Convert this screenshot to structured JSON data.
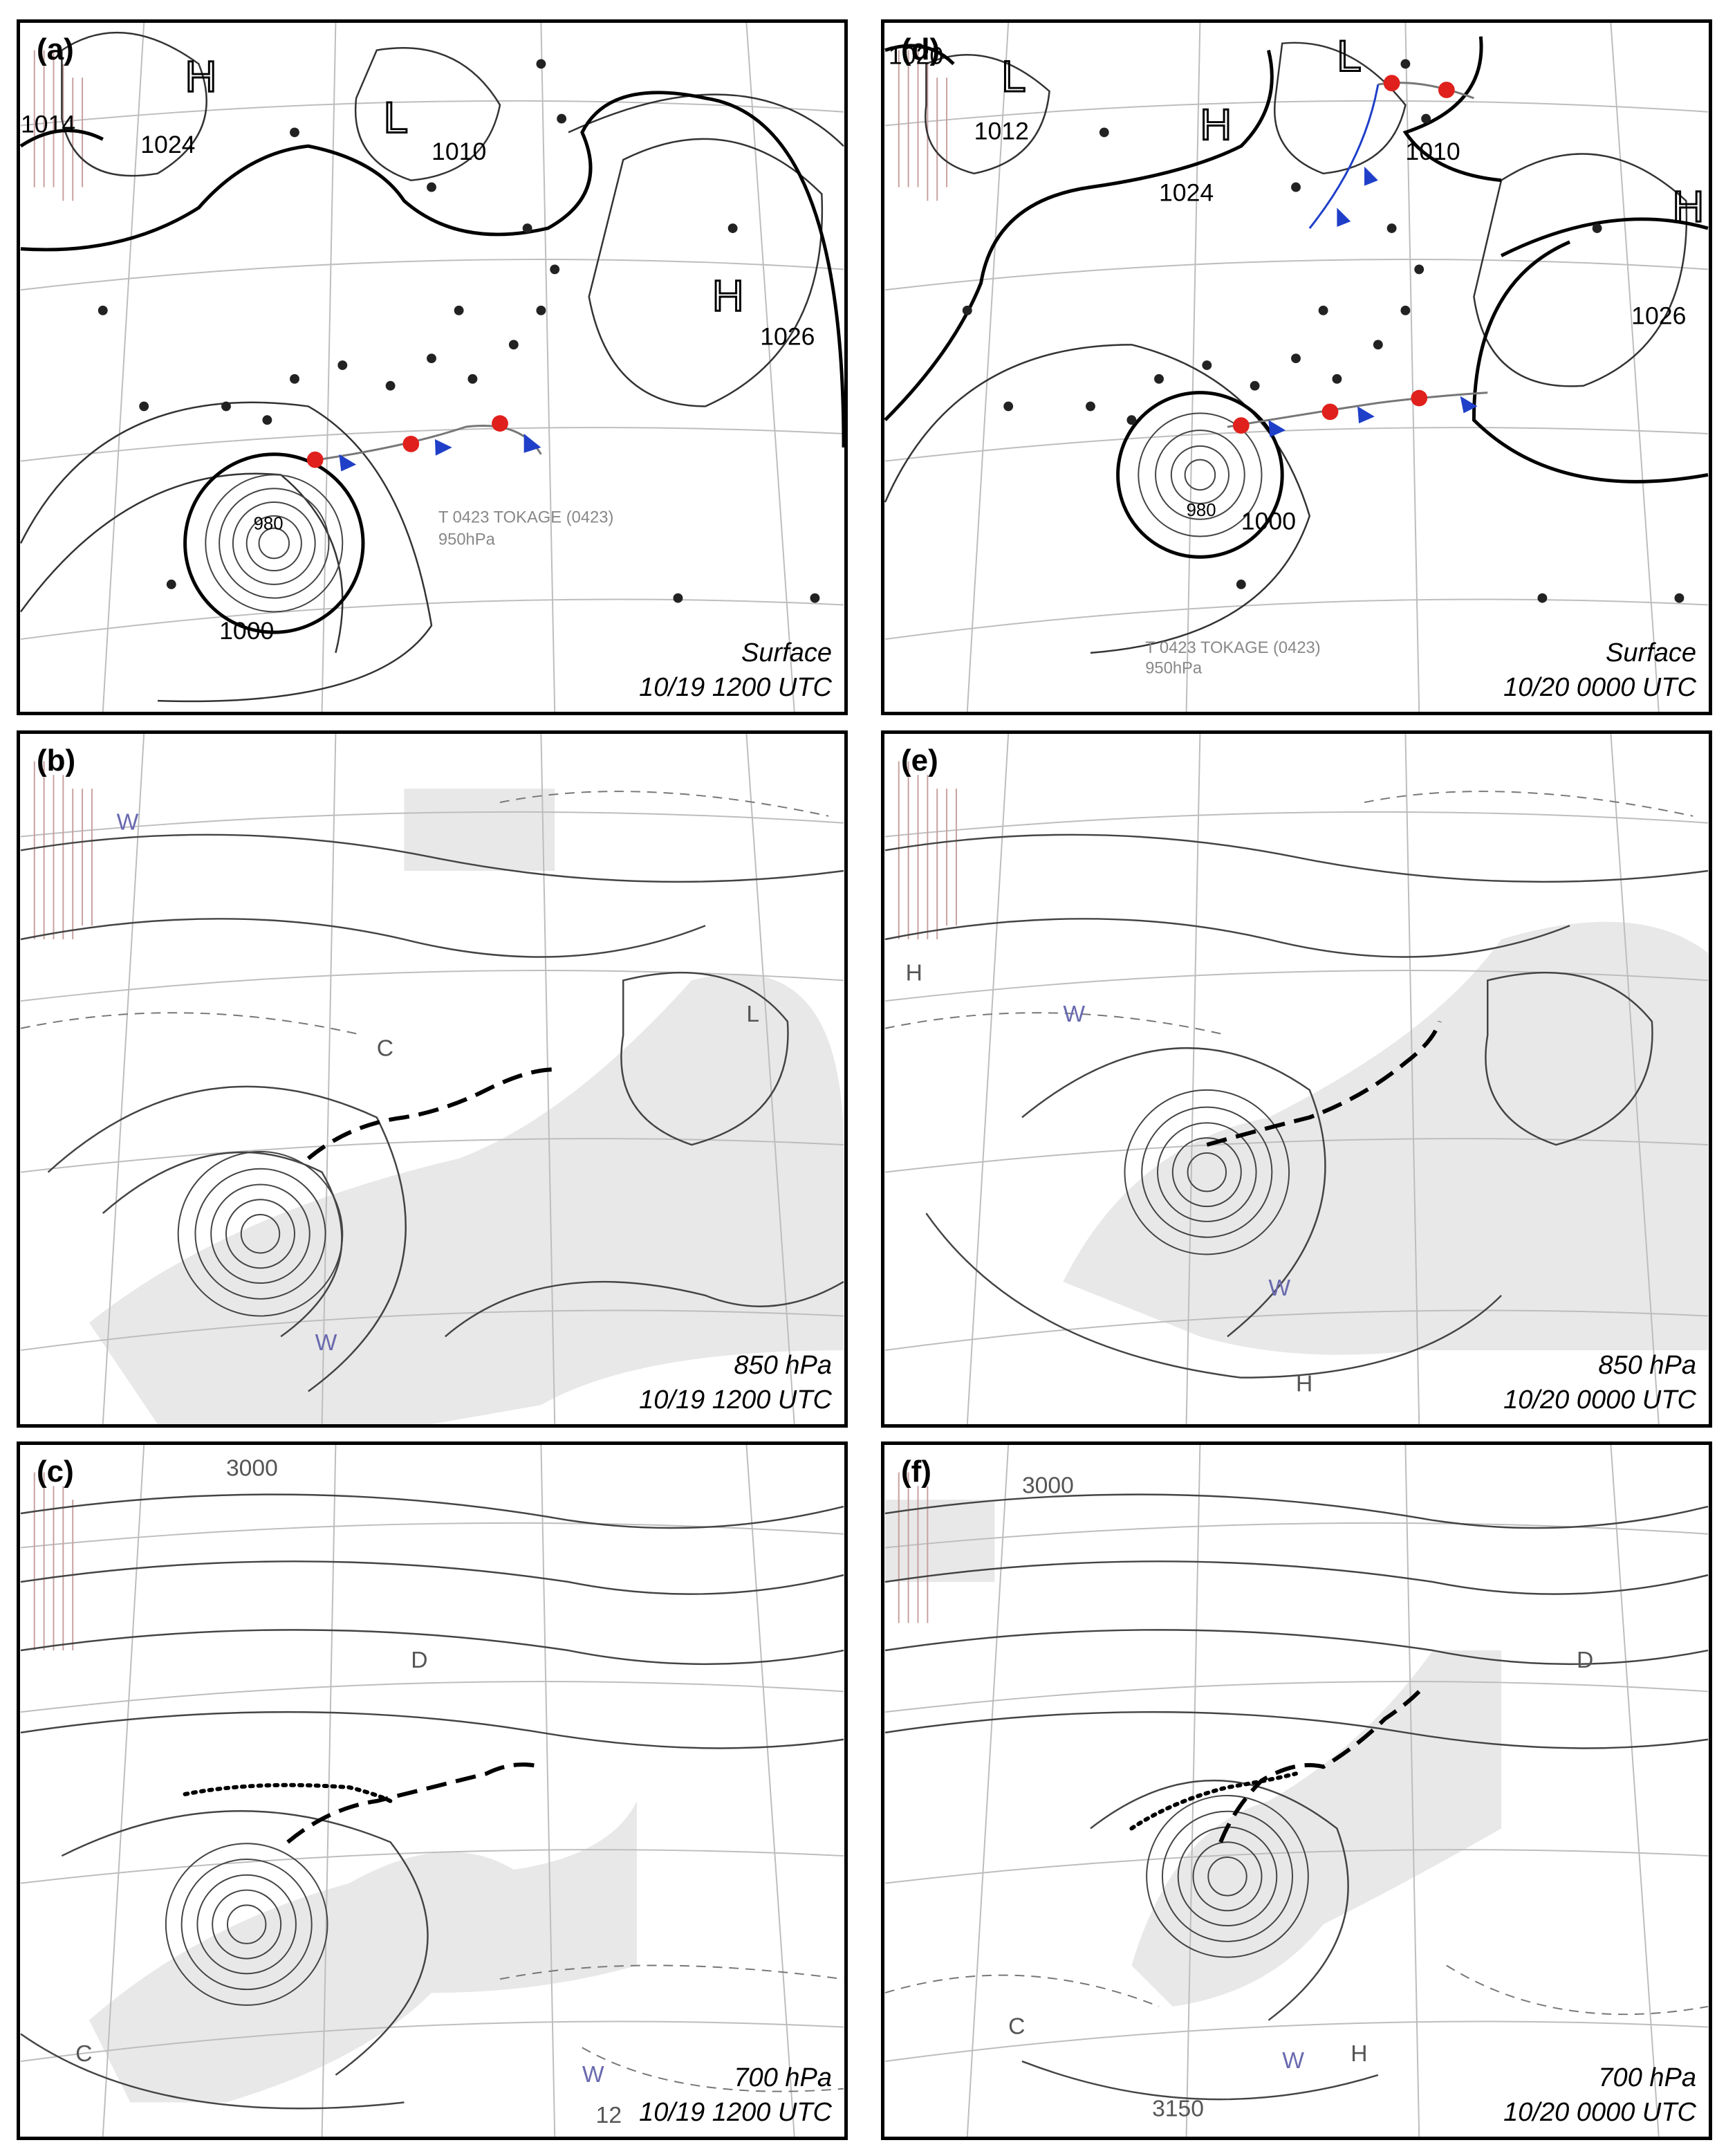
{
  "panels": [
    {
      "label": "(a)",
      "level": "Surface",
      "time": "10/19 1200 UTC",
      "annotations": [
        "1024",
        "1014",
        "1010",
        "1026",
        "980",
        "1000",
        "T 0423 TOKAGE (0423)",
        "950hPa"
      ],
      "pressure_centers": [
        "H",
        "L",
        "H"
      ]
    },
    {
      "label": "(b)",
      "level": "850  hPa",
      "time": "10/19 1200 UTC",
      "annotations": [
        "C",
        "W",
        "W",
        "L"
      ]
    },
    {
      "label": "(c)",
      "level": "700  hPa",
      "time": "10/19 1200 UTC",
      "annotations": [
        "3000",
        "D",
        "C",
        "W",
        "12"
      ]
    },
    {
      "label": "(d)",
      "level": "Surface",
      "time": "10/20 0000 UTC",
      "annotations": [
        "1020",
        "1012",
        "1024",
        "1010",
        "1026",
        "980",
        "1000",
        "T 0423 TOKAGE (0423)",
        "950hPa"
      ],
      "pressure_centers": [
        "L",
        "H",
        "L",
        "H"
      ]
    },
    {
      "label": "(e)",
      "level": "850  hPa",
      "time": "10/20 0000 UTC",
      "annotations": [
        "H",
        "W",
        "W",
        "H"
      ]
    },
    {
      "label": "(f)",
      "level": "700  hPa",
      "time": "10/20 0000 UTC",
      "annotations": [
        "3000",
        "D",
        "C",
        "W",
        "H",
        "3150"
      ]
    }
  ],
  "colors": {
    "isobar": "#333333",
    "grid": "#b9b9b9",
    "cold_front": "#1f3fc8",
    "warm_front": "#e0201c",
    "shading": "#9a9a9a",
    "hatch": "#c8a0a0"
  }
}
